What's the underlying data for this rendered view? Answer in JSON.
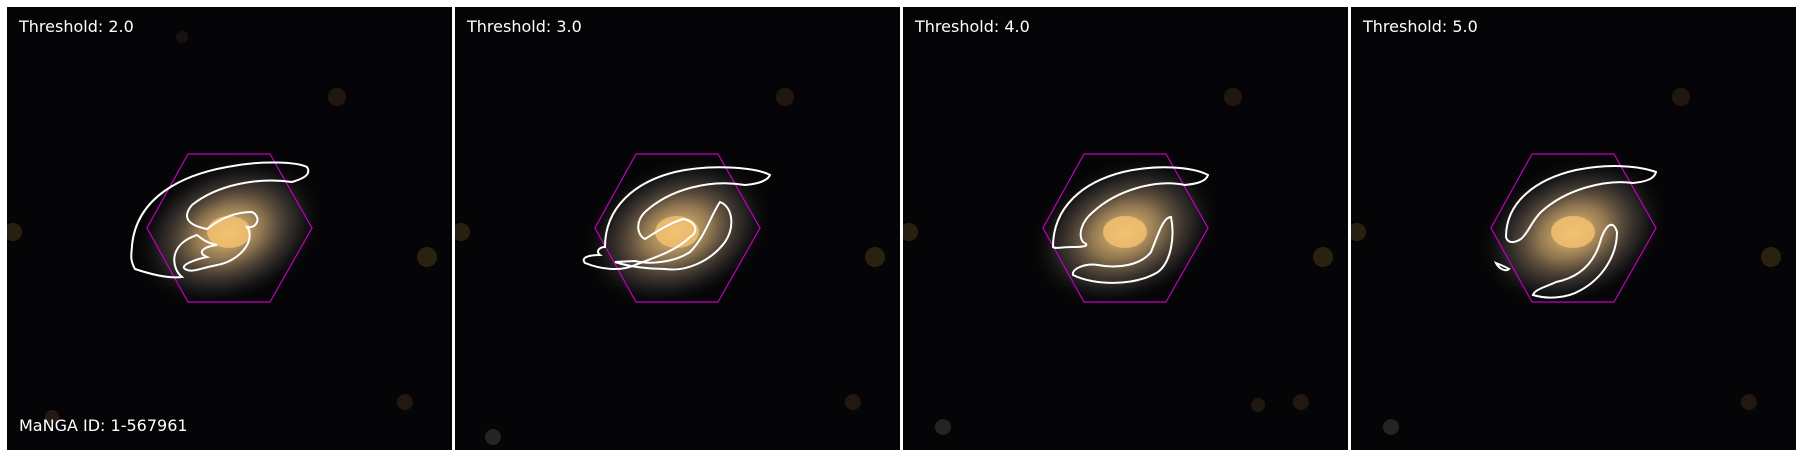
{
  "figure": {
    "panels": [
      {
        "label": "Threshold: 2.0"
      },
      {
        "label": "Threshold: 3.0"
      },
      {
        "label": "Threshold: 4.0"
      },
      {
        "label": "Threshold: 5.0"
      }
    ],
    "manga_id": "MaNGA ID: 1-567961"
  },
  "colors": {
    "background": "#050406",
    "contour": "#ffffff",
    "hexagon": "#c000c0",
    "galaxy_core": "#e0b060",
    "galaxy_disk": "#6a6458"
  }
}
